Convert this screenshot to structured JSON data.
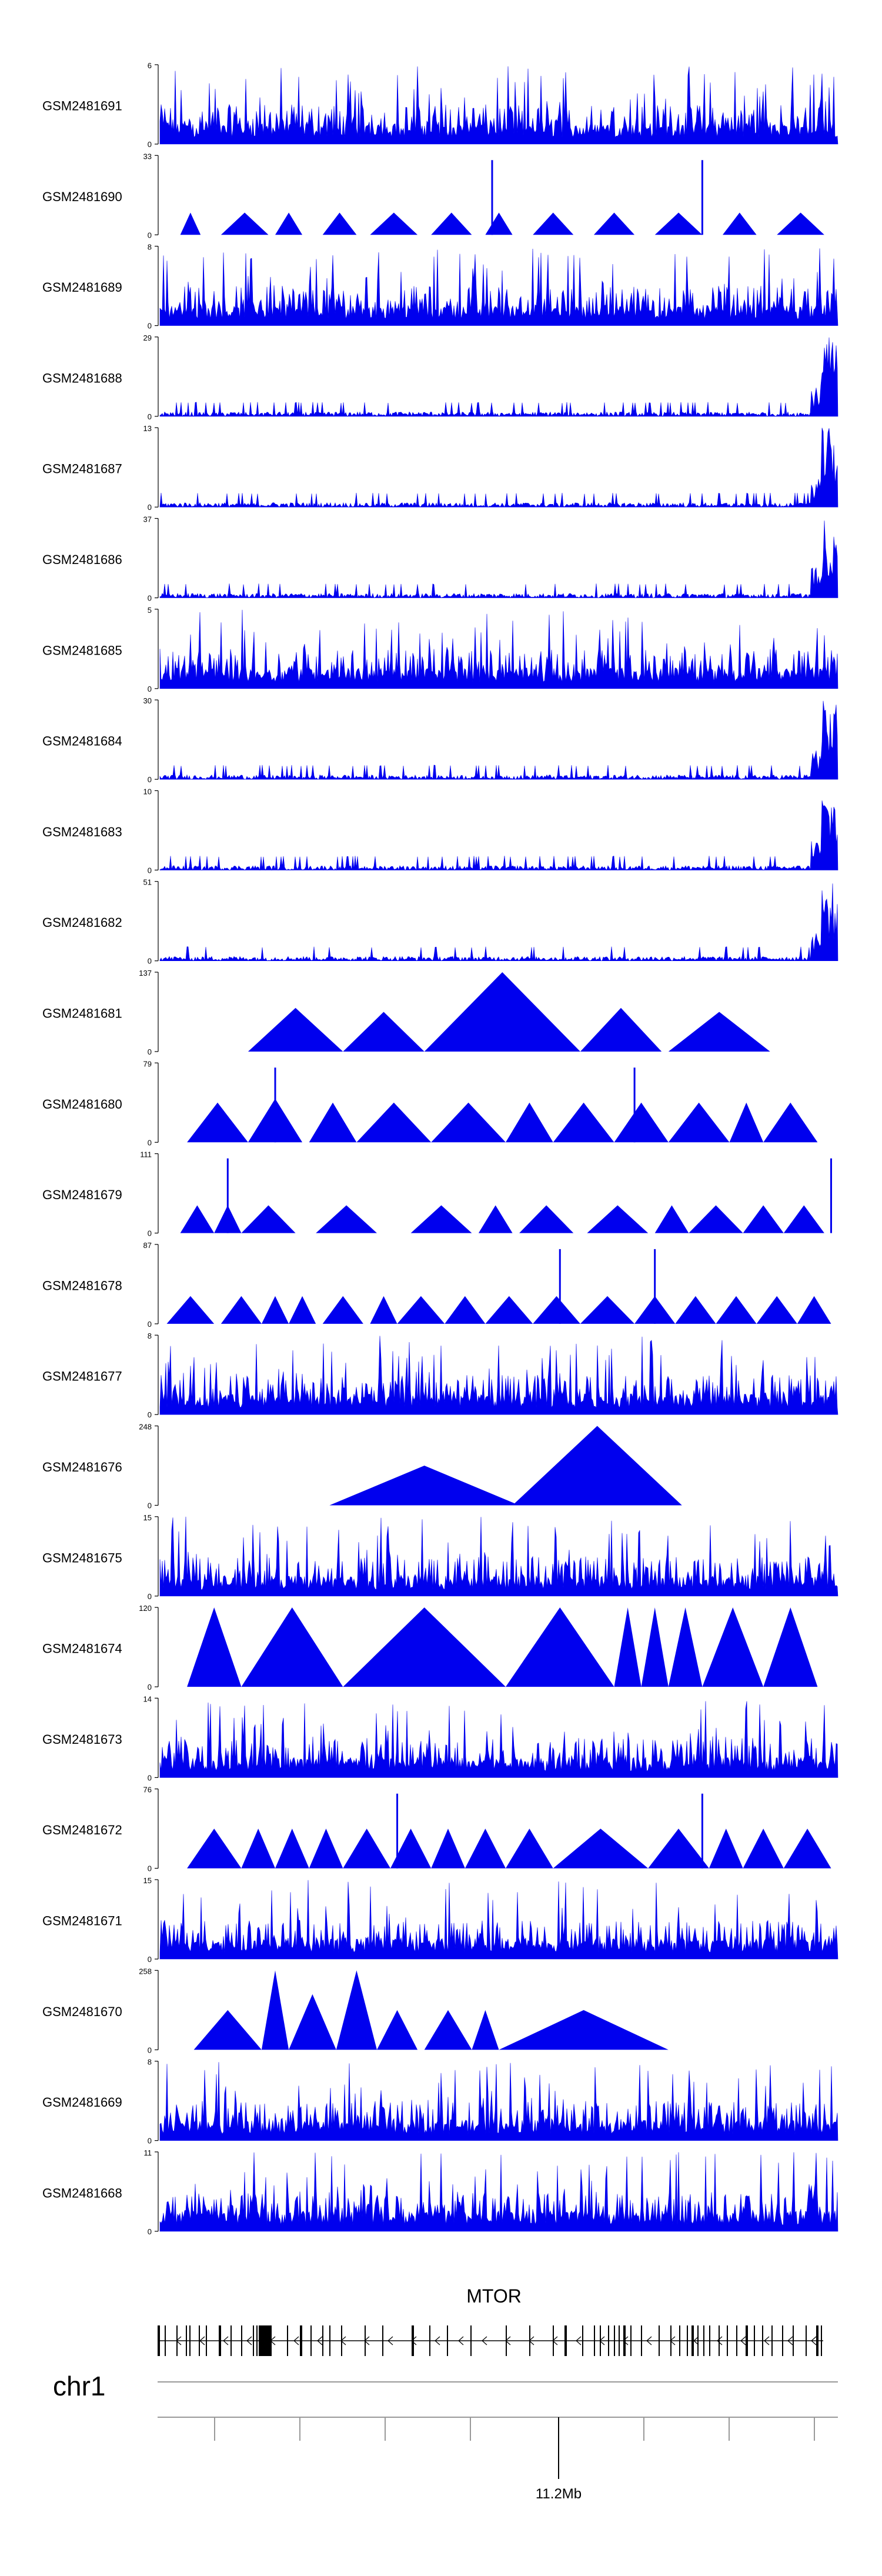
{
  "chart_data": {
    "type": "area",
    "title": "",
    "colors": {
      "signal": "#0000ee",
      "axis": "#000000",
      "gene": "#000000",
      "ideogram": "#999999"
    },
    "tracks": [
      {
        "name": "GSM2481691",
        "ymax": 6,
        "shape": "noise",
        "peaks": []
      },
      {
        "name": "GSM2481690",
        "ymax": 33,
        "shape": "tri",
        "peaks": [
          [
            0.03,
            0.06
          ],
          [
            0.09,
            0.16
          ],
          [
            0.17,
            0.21
          ],
          [
            0.24,
            0.29
          ],
          [
            0.31,
            0.38
          ],
          [
            0.4,
            0.46
          ],
          [
            0.48,
            0.52
          ],
          [
            0.55,
            0.61
          ],
          [
            0.64,
            0.7
          ],
          [
            0.73,
            0.8
          ],
          [
            0.83,
            0.88
          ],
          [
            0.91,
            0.98
          ]
        ]
      },
      {
        "name": "GSM2481689",
        "ymax": 8,
        "shape": "noise",
        "peaks": []
      },
      {
        "name": "GSM2481688",
        "ymax": 29,
        "shape": "end",
        "peaks": []
      },
      {
        "name": "GSM2481687",
        "ymax": 13,
        "shape": "end",
        "peaks": []
      },
      {
        "name": "GSM2481686",
        "ymax": 37,
        "shape": "end",
        "peaks": []
      },
      {
        "name": "GSM2481685",
        "ymax": 5,
        "shape": "noise",
        "peaks": []
      },
      {
        "name": "GSM2481684",
        "ymax": 30,
        "shape": "end",
        "peaks": []
      },
      {
        "name": "GSM2481683",
        "ymax": 10,
        "shape": "end",
        "peaks": []
      },
      {
        "name": "GSM2481682",
        "ymax": 51,
        "shape": "end",
        "peaks": []
      },
      {
        "name": "GSM2481681",
        "ymax": 137,
        "shape": "tri",
        "peaks": [
          [
            0.13,
            0.27,
            0.55
          ],
          [
            0.27,
            0.39,
            0.5
          ],
          [
            0.39,
            0.62,
            1.0
          ],
          [
            0.62,
            0.74,
            0.55
          ],
          [
            0.75,
            0.9,
            0.5
          ]
        ]
      },
      {
        "name": "GSM2481680",
        "ymax": 79,
        "shape": "tri",
        "peaks": [
          [
            0.04,
            0.13,
            0.5
          ],
          [
            0.13,
            0.21,
            0.55
          ],
          [
            0.22,
            0.29,
            0.5
          ],
          [
            0.29,
            0.4,
            0.5
          ],
          [
            0.4,
            0.51,
            0.5
          ],
          [
            0.51,
            0.58,
            0.5
          ],
          [
            0.58,
            0.67,
            0.5
          ],
          [
            0.67,
            0.75,
            0.5
          ],
          [
            0.75,
            0.84,
            0.5
          ],
          [
            0.84,
            0.89,
            0.5
          ],
          [
            0.89,
            0.97,
            0.5
          ]
        ]
      },
      {
        "name": "GSM2481679",
        "ymax": 111,
        "shape": "tri",
        "peaks": [
          [
            0.03,
            0.08,
            0.35
          ],
          [
            0.08,
            0.12,
            0.35
          ],
          [
            0.12,
            0.2,
            0.35
          ],
          [
            0.23,
            0.32,
            0.35
          ],
          [
            0.37,
            0.46,
            0.35
          ],
          [
            0.47,
            0.52,
            0.35
          ],
          [
            0.53,
            0.61,
            0.35
          ],
          [
            0.63,
            0.72,
            0.35
          ],
          [
            0.73,
            0.78,
            0.35
          ],
          [
            0.78,
            0.86,
            0.35
          ],
          [
            0.86,
            0.92,
            0.35
          ],
          [
            0.92,
            0.98,
            0.35
          ]
        ]
      },
      {
        "name": "GSM2481678",
        "ymax": 87,
        "shape": "tri",
        "peaks": [
          [
            0.01,
            0.08,
            0.35
          ],
          [
            0.09,
            0.15,
            0.35
          ],
          [
            0.15,
            0.19,
            0.35
          ],
          [
            0.19,
            0.23,
            0.35
          ],
          [
            0.24,
            0.3,
            0.35
          ],
          [
            0.31,
            0.35,
            0.35
          ],
          [
            0.35,
            0.42,
            0.35
          ],
          [
            0.42,
            0.48,
            0.35
          ],
          [
            0.48,
            0.55,
            0.35
          ],
          [
            0.55,
            0.62,
            0.35
          ],
          [
            0.62,
            0.7,
            0.35
          ],
          [
            0.7,
            0.76,
            0.35
          ],
          [
            0.76,
            0.82,
            0.35
          ],
          [
            0.82,
            0.88,
            0.35
          ],
          [
            0.88,
            0.94,
            0.35
          ],
          [
            0.94,
            0.99,
            0.35
          ]
        ]
      },
      {
        "name": "GSM2481677",
        "ymax": 8,
        "shape": "noise",
        "peaks": []
      },
      {
        "name": "GSM2481676",
        "ymax": 248,
        "shape": "tri",
        "peaks": [
          [
            0.25,
            0.53,
            0.5
          ],
          [
            0.52,
            0.77,
            1.0
          ]
        ]
      },
      {
        "name": "GSM2481675",
        "ymax": 15,
        "shape": "noise",
        "peaks": []
      },
      {
        "name": "GSM2481674",
        "ymax": 120,
        "shape": "tri",
        "peaks": [
          [
            0.04,
            0.12,
            1.0
          ],
          [
            0.12,
            0.27,
            1.0
          ],
          [
            0.27,
            0.51,
            1.0
          ],
          [
            0.51,
            0.67,
            1.0
          ],
          [
            0.67,
            0.71,
            1.0
          ],
          [
            0.71,
            0.75,
            1.0
          ],
          [
            0.75,
            0.8,
            1.0
          ],
          [
            0.8,
            0.89,
            1.0
          ],
          [
            0.89,
            0.97,
            1.0
          ]
        ]
      },
      {
        "name": "GSM2481673",
        "ymax": 14,
        "shape": "noise",
        "peaks": []
      },
      {
        "name": "GSM2481672",
        "ymax": 76,
        "shape": "tri",
        "peaks": [
          [
            0.04,
            0.12,
            0.5
          ],
          [
            0.12,
            0.17,
            0.5
          ],
          [
            0.17,
            0.22,
            0.5
          ],
          [
            0.22,
            0.27,
            0.5
          ],
          [
            0.27,
            0.34,
            0.5
          ],
          [
            0.34,
            0.4,
            0.5
          ],
          [
            0.4,
            0.45,
            0.5
          ],
          [
            0.45,
            0.51,
            0.5
          ],
          [
            0.51,
            0.58,
            0.5
          ],
          [
            0.58,
            0.72,
            0.5
          ],
          [
            0.72,
            0.81,
            0.5
          ],
          [
            0.81,
            0.86,
            0.5
          ],
          [
            0.86,
            0.92,
            0.5
          ],
          [
            0.92,
            0.99,
            0.5
          ]
        ]
      },
      {
        "name": "GSM2481671",
        "ymax": 15,
        "shape": "noise",
        "peaks": []
      },
      {
        "name": "GSM2481670",
        "ymax": 258,
        "shape": "tri",
        "peaks": [
          [
            0.05,
            0.15,
            0.5
          ],
          [
            0.15,
            0.19,
            1.0
          ],
          [
            0.19,
            0.26,
            0.7
          ],
          [
            0.26,
            0.32,
            1.0
          ],
          [
            0.32,
            0.38,
            0.5
          ],
          [
            0.39,
            0.46,
            0.5
          ],
          [
            0.46,
            0.5,
            0.5
          ],
          [
            0.5,
            0.75,
            0.5
          ]
        ]
      },
      {
        "name": "GSM2481669",
        "ymax": 8,
        "shape": "noise",
        "peaks": []
      },
      {
        "name": "GSM2481668",
        "ymax": 11,
        "shape": "noise",
        "peaks": []
      }
    ],
    "gene": {
      "label": "MTOR",
      "strand": "-"
    },
    "chromosome": {
      "label": "chr1",
      "tick_label": "11.2Mb",
      "position_mb": 11.2
    }
  }
}
